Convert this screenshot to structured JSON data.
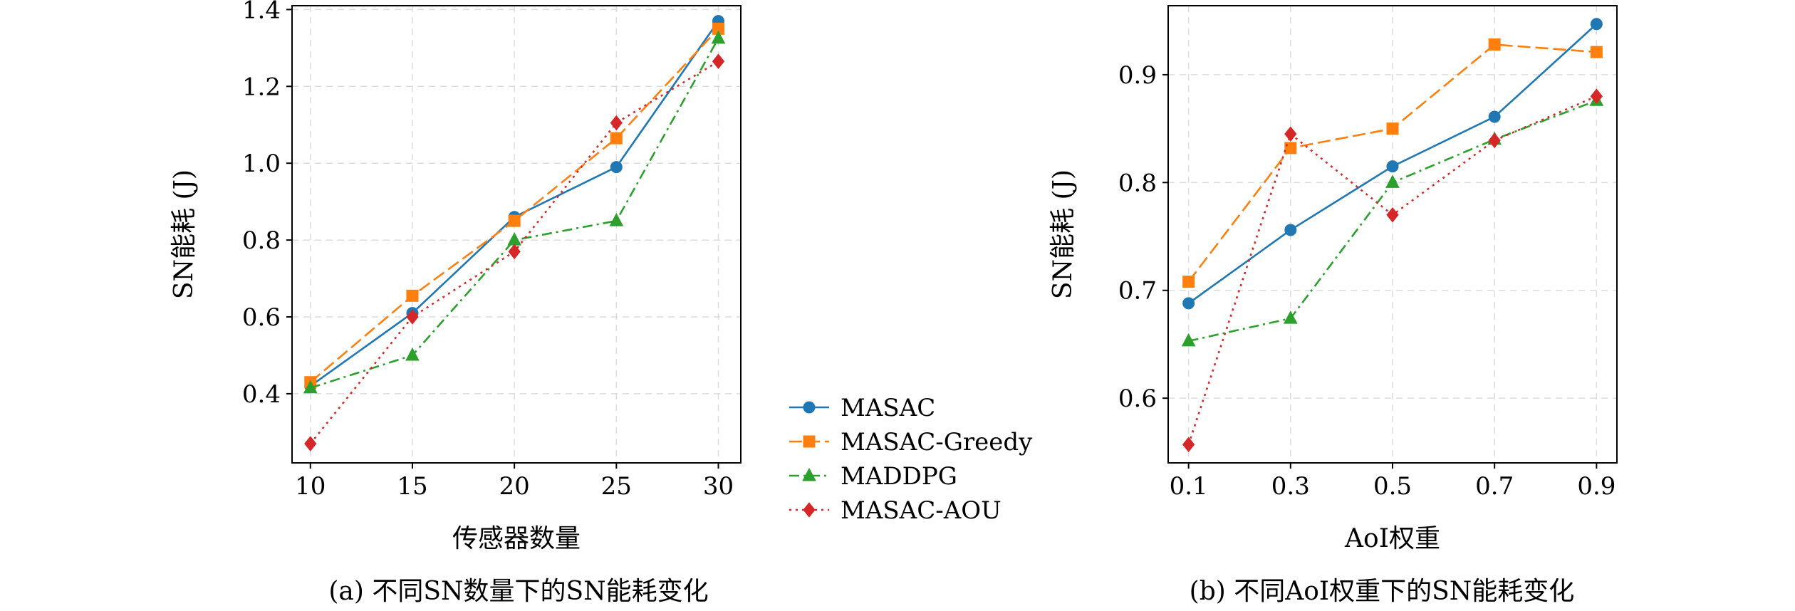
{
  "figure_captions": {
    "a": "(a) 不同SN数量下的SN能耗变化",
    "b": "(b) 不同AoI权重下的SN能耗变化"
  },
  "legend": {
    "placement": "between-panels",
    "entries": [
      {
        "label": "MASAC",
        "color": "#1f77b4",
        "marker": "circle",
        "dash": "solid"
      },
      {
        "label": "MASAC-Greedy",
        "color": "#ff7f0e",
        "marker": "square",
        "dash": "dashed"
      },
      {
        "label": "MADDPG",
        "color": "#2ca02c",
        "marker": "triangle",
        "dash": "dashdot"
      },
      {
        "label": "MASAC-AOU",
        "color": "#d62728",
        "marker": "diamond",
        "dash": "dotted"
      }
    ]
  },
  "chart_data": [
    {
      "type": "line",
      "title": "",
      "xlabel": "传感器数量",
      "ylabel": "SN能耗 (J)",
      "x": [
        10,
        15,
        20,
        25,
        30
      ],
      "x_tick_labels": [
        "10",
        "15",
        "20",
        "25",
        "30"
      ],
      "y_ticks": [
        0.4,
        0.6,
        0.8,
        1.0,
        1.2,
        1.4
      ],
      "y_tick_labels": [
        "0.4",
        "0.6",
        "0.8",
        "1.0",
        "1.2",
        "1.4"
      ],
      "xlim": [
        9.1,
        31.1
      ],
      "ylim": [
        0.22,
        1.41
      ],
      "grid": true,
      "series": [
        {
          "name": "MASAC",
          "values": [
            0.42,
            0.61,
            0.86,
            0.99,
            1.37
          ]
        },
        {
          "name": "MASAC-Greedy",
          "values": [
            0.43,
            0.655,
            0.85,
            1.065,
            1.35
          ]
        },
        {
          "name": "MADDPG",
          "values": [
            0.415,
            0.5,
            0.8,
            0.85,
            1.325
          ]
        },
        {
          "name": "MASAC-AOU",
          "values": [
            0.27,
            0.6,
            0.77,
            1.105,
            1.265
          ]
        }
      ]
    },
    {
      "type": "line",
      "title": "",
      "xlabel": "AoI权重",
      "ylabel": "SN能耗 (J)",
      "x": [
        0.1,
        0.3,
        0.5,
        0.7,
        0.9
      ],
      "x_tick_labels": [
        "0.1",
        "0.3",
        "0.5",
        "0.7",
        "0.9"
      ],
      "y_ticks": [
        0.6,
        0.7,
        0.8,
        0.9
      ],
      "y_tick_labels": [
        "0.6",
        "0.7",
        "0.8",
        "0.9"
      ],
      "xlim": [
        0.06,
        0.94
      ],
      "ylim": [
        0.54,
        0.964
      ],
      "grid": true,
      "series": [
        {
          "name": "MASAC",
          "values": [
            0.688,
            0.756,
            0.815,
            0.861,
            0.947
          ]
        },
        {
          "name": "MASAC-Greedy",
          "values": [
            0.708,
            0.832,
            0.85,
            0.928,
            0.921
          ]
        },
        {
          "name": "MADDPG",
          "values": [
            0.653,
            0.674,
            0.8,
            0.84,
            0.876
          ]
        },
        {
          "name": "MASAC-AOU",
          "values": [
            0.557,
            0.845,
            0.77,
            0.839,
            0.88
          ]
        }
      ]
    }
  ]
}
